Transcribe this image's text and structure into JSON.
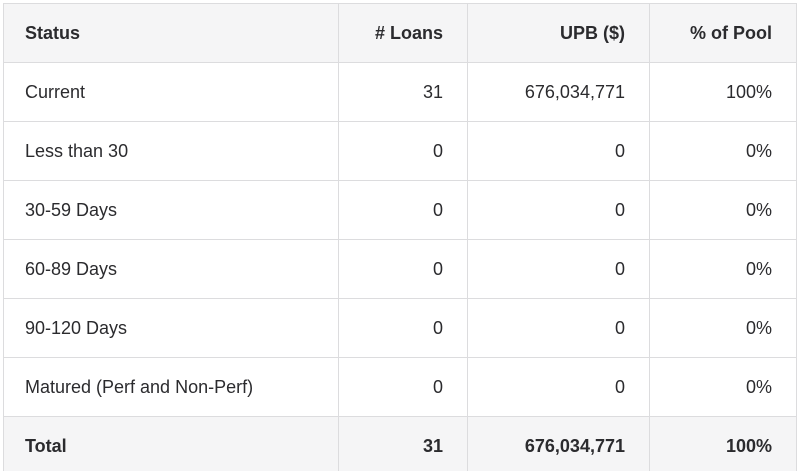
{
  "colors": {
    "header_bg": "#f5f5f6",
    "total_bg": "#f5f5f6",
    "row_bg": "#ffffff",
    "border": "#dcdcde",
    "total_divider": "#cfcfd1",
    "text": "#2b2b2e"
  },
  "table": {
    "columns": [
      {
        "label": "Status"
      },
      {
        "label": "# Loans"
      },
      {
        "label": "UPB ($)"
      },
      {
        "label": "% of Pool"
      }
    ],
    "rows": [
      {
        "status": "Current",
        "loans": "31",
        "upb": "676,034,771",
        "pct": "100%"
      },
      {
        "status": "Less than 30",
        "loans": "0",
        "upb": "0",
        "pct": "0%"
      },
      {
        "status": "30-59 Days",
        "loans": "0",
        "upb": "0",
        "pct": "0%"
      },
      {
        "status": "60-89 Days",
        "loans": "0",
        "upb": "0",
        "pct": "0%"
      },
      {
        "status": "90-120 Days",
        "loans": "0",
        "upb": "0",
        "pct": "0%"
      },
      {
        "status": "Matured (Perf and Non-Perf)",
        "loans": "0",
        "upb": "0",
        "pct": "0%"
      }
    ],
    "total": {
      "status": "Total",
      "loans": "31",
      "upb": "676,034,771",
      "pct": "100%"
    }
  }
}
